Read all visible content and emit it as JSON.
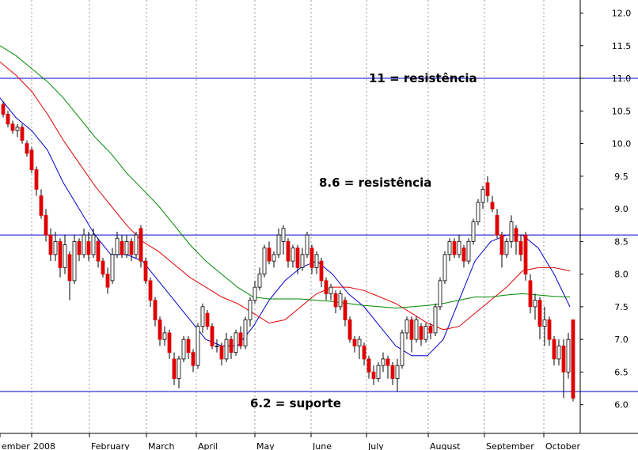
{
  "chart_data": {
    "type": "candlestick",
    "ylim": [
      5.56,
      12.2
    ],
    "y_ticks": [
      "6.0",
      "6.5",
      "7.0",
      "7.5",
      "8.0",
      "8.5",
      "9.0",
      "9.5",
      "10.0",
      "10.5",
      "11.0",
      "11.5",
      "12.0"
    ],
    "x_labels": [
      "ember",
      "2008",
      "February",
      "March",
      "April",
      "May",
      "June",
      "July",
      "August",
      "September",
      "October"
    ],
    "grid": "vertical dotted at month boundaries",
    "levels": [
      {
        "value": 11.0,
        "label": "11 = resistência"
      },
      {
        "value": 8.6,
        "label": "8.6 = resistência"
      },
      {
        "value": 6.2,
        "label": "6.2 = suporte"
      }
    ],
    "up_color": "#ffffff",
    "down_color": "#e00000",
    "level_color": "#0000cc",
    "ma_series": [
      {
        "color": "#0000cc",
        "points": [
          [
            0,
            10.7
          ],
          [
            20,
            10.4
          ],
          [
            40,
            10.2
          ],
          [
            60,
            9.9
          ],
          [
            80,
            9.4
          ],
          [
            100,
            9.0
          ],
          [
            120,
            8.6
          ],
          [
            140,
            8.3
          ],
          [
            160,
            8.3
          ],
          [
            180,
            8.2
          ],
          [
            200,
            7.9
          ],
          [
            220,
            7.6
          ],
          [
            240,
            7.3
          ],
          [
            260,
            7.0
          ],
          [
            280,
            6.9
          ],
          [
            300,
            6.9
          ],
          [
            320,
            7.2
          ],
          [
            340,
            7.6
          ],
          [
            360,
            7.9
          ],
          [
            380,
            8.1
          ],
          [
            400,
            8.2
          ],
          [
            420,
            8.0
          ],
          [
            440,
            7.7
          ],
          [
            460,
            7.5
          ],
          [
            480,
            7.2
          ],
          [
            500,
            6.9
          ],
          [
            520,
            6.75
          ],
          [
            540,
            6.75
          ],
          [
            560,
            7.0
          ],
          [
            580,
            7.6
          ],
          [
            600,
            8.2
          ],
          [
            620,
            8.5
          ],
          [
            640,
            8.6
          ],
          [
            660,
            8.6
          ],
          [
            680,
            8.4
          ],
          [
            700,
            8.0
          ],
          [
            720,
            7.5
          ]
        ]
      },
      {
        "color": "#e00000",
        "points": [
          [
            0,
            11.25
          ],
          [
            20,
            11.05
          ],
          [
            40,
            10.8
          ],
          [
            60,
            10.45
          ],
          [
            80,
            10.05
          ],
          [
            100,
            9.7
          ],
          [
            120,
            9.35
          ],
          [
            140,
            9.05
          ],
          [
            160,
            8.75
          ],
          [
            180,
            8.5
          ],
          [
            200,
            8.35
          ],
          [
            220,
            8.15
          ],
          [
            240,
            7.95
          ],
          [
            260,
            7.8
          ],
          [
            280,
            7.65
          ],
          [
            300,
            7.55
          ],
          [
            320,
            7.4
          ],
          [
            340,
            7.25
          ],
          [
            360,
            7.3
          ],
          [
            380,
            7.5
          ],
          [
            400,
            7.7
          ],
          [
            420,
            7.8
          ],
          [
            440,
            7.8
          ],
          [
            460,
            7.75
          ],
          [
            480,
            7.65
          ],
          [
            500,
            7.55
          ],
          [
            520,
            7.4
          ],
          [
            540,
            7.25
          ],
          [
            560,
            7.15
          ],
          [
            580,
            7.2
          ],
          [
            600,
            7.4
          ],
          [
            620,
            7.6
          ],
          [
            640,
            7.8
          ],
          [
            660,
            8.05
          ],
          [
            680,
            8.1
          ],
          [
            700,
            8.1
          ],
          [
            720,
            8.05
          ]
        ]
      },
      {
        "color": "#008800",
        "points": [
          [
            0,
            11.5
          ],
          [
            20,
            11.35
          ],
          [
            40,
            11.15
          ],
          [
            60,
            10.95
          ],
          [
            80,
            10.7
          ],
          [
            100,
            10.4
          ],
          [
            120,
            10.1
          ],
          [
            140,
            9.85
          ],
          [
            160,
            9.55
          ],
          [
            180,
            9.3
          ],
          [
            200,
            9.05
          ],
          [
            220,
            8.75
          ],
          [
            240,
            8.45
          ],
          [
            260,
            8.2
          ],
          [
            280,
            8.0
          ],
          [
            300,
            7.8
          ],
          [
            320,
            7.65
          ],
          [
            340,
            7.62
          ],
          [
            360,
            7.62
          ],
          [
            380,
            7.62
          ],
          [
            400,
            7.6
          ],
          [
            420,
            7.58
          ],
          [
            440,
            7.55
          ],
          [
            460,
            7.52
          ],
          [
            480,
            7.5
          ],
          [
            500,
            7.48
          ],
          [
            520,
            7.5
          ],
          [
            540,
            7.52
          ],
          [
            560,
            7.55
          ],
          [
            580,
            7.6
          ],
          [
            600,
            7.65
          ],
          [
            620,
            7.65
          ],
          [
            640,
            7.68
          ],
          [
            660,
            7.7
          ],
          [
            680,
            7.68
          ],
          [
            700,
            7.66
          ],
          [
            720,
            7.65
          ]
        ]
      }
    ],
    "candles": [
      [
        2,
        10.6,
        10.45,
        10.65,
        10.4
      ],
      [
        8,
        10.45,
        10.3,
        10.5,
        10.25
      ],
      [
        14,
        10.3,
        10.2,
        10.35,
        10.15
      ],
      [
        20,
        10.2,
        10.25,
        10.3,
        10.1
      ],
      [
        26,
        10.25,
        10.05,
        10.3,
        10.0
      ],
      [
        32,
        10.0,
        9.85,
        10.05,
        9.8
      ],
      [
        38,
        9.9,
        9.6,
        9.95,
        9.55
      ],
      [
        44,
        9.6,
        9.3,
        9.65,
        9.2
      ],
      [
        50,
        9.2,
        8.9,
        9.3,
        8.85
      ],
      [
        56,
        8.9,
        8.6,
        9.0,
        8.5
      ],
      [
        62,
        8.6,
        8.3,
        8.7,
        8.2
      ],
      [
        68,
        8.3,
        8.5,
        8.65,
        8.2
      ],
      [
        74,
        8.5,
        8.1,
        8.55,
        7.95
      ],
      [
        80,
        8.1,
        8.45,
        8.6,
        8.0
      ],
      [
        86,
        8.3,
        7.9,
        8.35,
        7.6
      ],
      [
        92,
        7.9,
        8.5,
        8.6,
        7.85
      ],
      [
        98,
        8.5,
        8.3,
        8.55,
        8.2
      ],
      [
        104,
        8.3,
        8.6,
        8.7,
        8.25
      ],
      [
        110,
        8.5,
        8.3,
        8.65,
        8.2
      ],
      [
        116,
        8.3,
        8.6,
        8.7,
        8.25
      ],
      [
        122,
        8.5,
        8.2,
        8.55,
        8.1
      ],
      [
        128,
        8.2,
        8.0,
        8.25,
        7.95
      ],
      [
        134,
        8.0,
        7.8,
        8.1,
        7.7
      ],
      [
        140,
        7.9,
        8.3,
        8.4,
        7.85
      ],
      [
        146,
        8.3,
        8.55,
        8.65,
        8.25
      ],
      [
        152,
        8.5,
        8.3,
        8.6,
        8.25
      ],
      [
        158,
        8.3,
        8.5,
        8.6,
        8.25
      ],
      [
        164,
        8.5,
        8.3,
        8.55,
        8.2
      ],
      [
        170,
        8.3,
        8.6,
        8.65,
        8.25
      ],
      [
        176,
        8.7,
        8.2,
        8.75,
        8.1
      ],
      [
        182,
        8.2,
        7.9,
        8.25,
        7.85
      ],
      [
        188,
        7.9,
        7.6,
        7.95,
        7.5
      ],
      [
        194,
        7.6,
        7.3,
        7.65,
        7.2
      ],
      [
        200,
        7.3,
        7.0,
        7.35,
        6.9
      ],
      [
        206,
        7.0,
        7.1,
        7.2,
        6.9
      ],
      [
        212,
        7.1,
        6.8,
        7.15,
        6.7
      ],
      [
        218,
        6.7,
        6.4,
        6.8,
        6.3
      ],
      [
        224,
        6.4,
        6.7,
        6.75,
        6.25
      ],
      [
        230,
        6.7,
        7.0,
        7.05,
        6.65
      ],
      [
        236,
        7.0,
        6.8,
        7.05,
        6.7
      ],
      [
        242,
        6.8,
        6.6,
        6.85,
        6.5
      ],
      [
        248,
        6.6,
        7.2,
        7.25,
        6.55
      ],
      [
        254,
        7.2,
        7.5,
        7.55,
        7.1
      ],
      [
        260,
        7.4,
        7.2,
        7.45,
        7.15
      ],
      [
        266,
        7.2,
        6.9,
        7.25,
        6.85
      ],
      [
        272,
        6.9,
        6.9,
        7.0,
        6.8
      ],
      [
        278,
        6.9,
        6.7,
        6.95,
        6.6
      ],
      [
        284,
        6.7,
        7.0,
        7.1,
        6.65
      ],
      [
        290,
        7.0,
        6.8,
        7.05,
        6.7
      ],
      [
        296,
        6.8,
        7.1,
        7.15,
        6.75
      ],
      [
        302,
        7.1,
        6.9,
        7.2,
        6.85
      ],
      [
        308,
        6.9,
        7.3,
        7.35,
        6.85
      ],
      [
        314,
        7.3,
        7.6,
        7.65,
        7.2
      ],
      [
        320,
        7.6,
        7.8,
        7.9,
        7.55
      ],
      [
        326,
        7.8,
        8.0,
        8.1,
        7.75
      ],
      [
        332,
        8.0,
        8.4,
        8.45,
        7.95
      ],
      [
        338,
        8.4,
        8.2,
        8.5,
        8.15
      ],
      [
        344,
        8.2,
        8.3,
        8.35,
        8.1
      ],
      [
        350,
        8.3,
        8.6,
        8.7,
        8.25
      ],
      [
        356,
        8.5,
        8.7,
        8.75,
        8.3
      ],
      [
        362,
        8.5,
        8.2,
        8.55,
        8.1
      ],
      [
        368,
        8.2,
        8.4,
        8.45,
        8.1
      ],
      [
        374,
        8.4,
        8.1,
        8.45,
        8.0
      ],
      [
        380,
        8.1,
        8.3,
        8.4,
        8.05
      ],
      [
        386,
        8.3,
        8.6,
        8.65,
        8.25
      ],
      [
        392,
        8.4,
        8.1,
        8.45,
        8.0
      ],
      [
        398,
        8.1,
        8.3,
        8.35,
        8.0
      ],
      [
        404,
        8.2,
        7.9,
        8.25,
        7.8
      ],
      [
        410,
        7.9,
        7.7,
        7.95,
        7.6
      ],
      [
        416,
        7.7,
        7.8,
        7.85,
        7.6
      ],
      [
        422,
        7.7,
        7.5,
        7.75,
        7.4
      ],
      [
        428,
        7.5,
        7.7,
        7.75,
        7.45
      ],
      [
        434,
        7.6,
        7.3,
        7.65,
        7.2
      ],
      [
        440,
        7.3,
        7.0,
        7.35,
        6.95
      ],
      [
        446,
        7.0,
        6.9,
        7.05,
        6.8
      ],
      [
        452,
        6.9,
        7.0,
        7.05,
        6.7
      ],
      [
        458,
        6.9,
        6.7,
        6.95,
        6.6
      ],
      [
        464,
        6.7,
        6.5,
        6.75,
        6.4
      ],
      [
        470,
        6.5,
        6.4,
        6.6,
        6.3
      ],
      [
        476,
        6.4,
        6.6,
        6.65,
        6.35
      ],
      [
        482,
        6.6,
        6.7,
        6.8,
        6.5
      ],
      [
        488,
        6.7,
        6.6,
        6.75,
        6.4
      ],
      [
        494,
        6.6,
        6.4,
        6.65,
        6.3
      ],
      [
        500,
        6.4,
        6.6,
        6.7,
        6.2
      ],
      [
        506,
        6.6,
        7.1,
        7.15,
        6.55
      ],
      [
        512,
        7.1,
        7.3,
        7.35,
        7.0
      ],
      [
        518,
        7.3,
        7.0,
        7.35,
        6.8
      ],
      [
        524,
        7.0,
        7.3,
        7.35,
        6.95
      ],
      [
        530,
        7.2,
        7.0,
        7.25,
        6.9
      ],
      [
        536,
        7.0,
        7.2,
        7.25,
        6.95
      ],
      [
        542,
        7.2,
        7.1,
        7.25,
        7.0
      ],
      [
        548,
        7.1,
        7.5,
        7.55,
        7.05
      ],
      [
        554,
        7.5,
        7.9,
        7.95,
        7.45
      ],
      [
        560,
        7.9,
        8.3,
        8.35,
        7.85
      ],
      [
        566,
        8.3,
        8.5,
        8.55,
        8.2
      ],
      [
        572,
        8.5,
        8.3,
        8.55,
        8.25
      ],
      [
        578,
        8.3,
        8.5,
        8.6,
        8.25
      ],
      [
        584,
        8.4,
        8.2,
        8.45,
        8.1
      ],
      [
        590,
        8.2,
        8.5,
        8.55,
        8.15
      ],
      [
        596,
        8.5,
        8.8,
        8.85,
        8.45
      ],
      [
        602,
        8.8,
        9.1,
        9.15,
        8.75
      ],
      [
        608,
        9.1,
        9.3,
        9.35,
        9.0
      ],
      [
        614,
        9.4,
        9.2,
        9.5,
        9.1
      ],
      [
        620,
        9.1,
        9.0,
        9.2,
        8.95
      ],
      [
        626,
        8.9,
        8.6,
        9.0,
        8.55
      ],
      [
        632,
        8.6,
        8.3,
        8.65,
        8.1
      ],
      [
        638,
        8.3,
        8.5,
        8.55,
        8.25
      ],
      [
        644,
        8.5,
        8.8,
        8.9,
        8.4
      ],
      [
        650,
        8.7,
        8.5,
        8.75,
        8.3
      ],
      [
        656,
        8.5,
        8.3,
        8.6,
        8.2
      ],
      [
        662,
        8.6,
        8.0,
        8.65,
        7.9
      ],
      [
        668,
        7.9,
        7.5,
        8.0,
        7.4
      ],
      [
        674,
        7.5,
        7.6,
        7.7,
        7.3
      ],
      [
        680,
        7.6,
        7.2,
        7.65,
        7.0
      ],
      [
        686,
        7.2,
        7.3,
        7.5,
        6.9
      ],
      [
        692,
        7.3,
        7.0,
        7.35,
        6.9
      ],
      [
        698,
        7.0,
        6.7,
        7.05,
        6.6
      ],
      [
        704,
        6.7,
        6.9,
        7.0,
        6.6
      ],
      [
        710,
        6.9,
        6.5,
        7.0,
        6.1
      ],
      [
        716,
        6.5,
        7.0,
        7.1,
        6.4
      ],
      [
        722,
        7.3,
        6.1,
        7.3,
        6.05
      ]
    ]
  }
}
